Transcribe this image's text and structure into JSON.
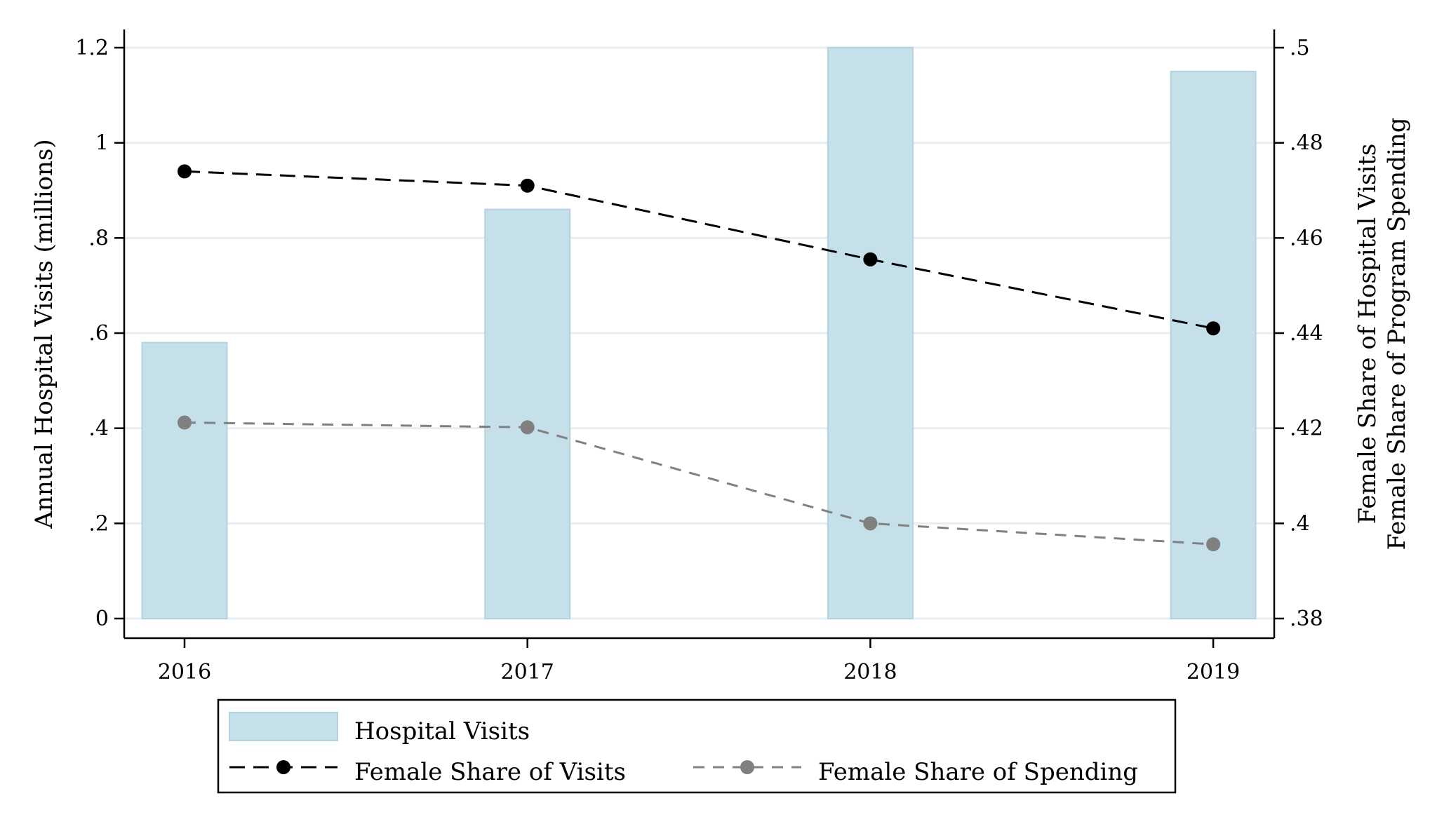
{
  "chart_data": {
    "type": "bar+line",
    "categories": [
      "2016",
      "2017",
      "2018",
      "2019"
    ],
    "x_tick_labels": [
      "2016",
      "2017",
      "2018",
      "2019"
    ],
    "left_axis": {
      "label": "Annual Hospital Visits (millions)",
      "range": [
        0,
        1.2
      ],
      "ticks": [
        0,
        0.2,
        0.4,
        0.6,
        0.8,
        1.0,
        1.2
      ],
      "tick_labels": [
        "0",
        ".2",
        ".4",
        ".6",
        ".8",
        "1",
        "1.2"
      ]
    },
    "right_axis": {
      "label_lines": [
        "Female Share of Hospital Visits",
        "Female Share of Program Spending"
      ],
      "range": [
        0.38,
        0.5
      ],
      "ticks": [
        0.38,
        0.4,
        0.42,
        0.44,
        0.46,
        0.48,
        0.5
      ],
      "tick_labels": [
        ".38",
        ".4",
        ".42",
        ".44",
        ".46",
        ".48",
        ".5"
      ]
    },
    "series": [
      {
        "name": "Hospital Visits",
        "type": "bar",
        "axis": "left",
        "color": "#c6e0ea",
        "values": [
          0.58,
          0.86,
          1.2,
          1.15
        ]
      },
      {
        "name": "Female Share of Visits",
        "type": "line",
        "axis": "right",
        "color": "#000000",
        "dash": "long",
        "values": [
          0.474,
          0.471,
          0.4555,
          0.441
        ]
      },
      {
        "name": "Female Share of Spending",
        "type": "line",
        "axis": "right",
        "color": "#808080",
        "dash": "short",
        "values": [
          0.4212,
          0.4202,
          0.4,
          0.3956
        ]
      }
    ],
    "grid": true,
    "legend_position": "bottom"
  }
}
